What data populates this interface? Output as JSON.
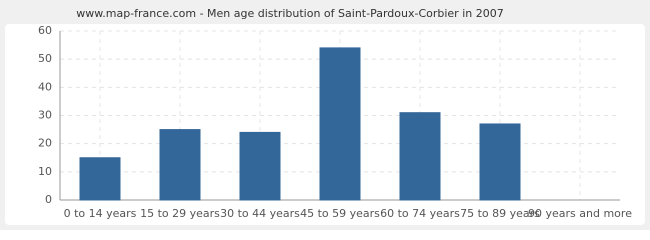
{
  "chart_data": {
    "type": "bar",
    "title": "www.map-france.com - Men age distribution of Saint-Pardoux-Corbier in 2007",
    "categories": [
      "0 to 14 years",
      "15 to 29 years",
      "30 to 44 years",
      "45 to 59 years",
      "60 to 74 years",
      "75 to 89 years",
      "90 years and more"
    ],
    "values": [
      15,
      25,
      24,
      54,
      31,
      27,
      0
    ],
    "color": "#336699",
    "ylim": [
      0,
      60
    ],
    "yticks": [
      0,
      10,
      20,
      30,
      40,
      50,
      60
    ],
    "grid": true
  }
}
